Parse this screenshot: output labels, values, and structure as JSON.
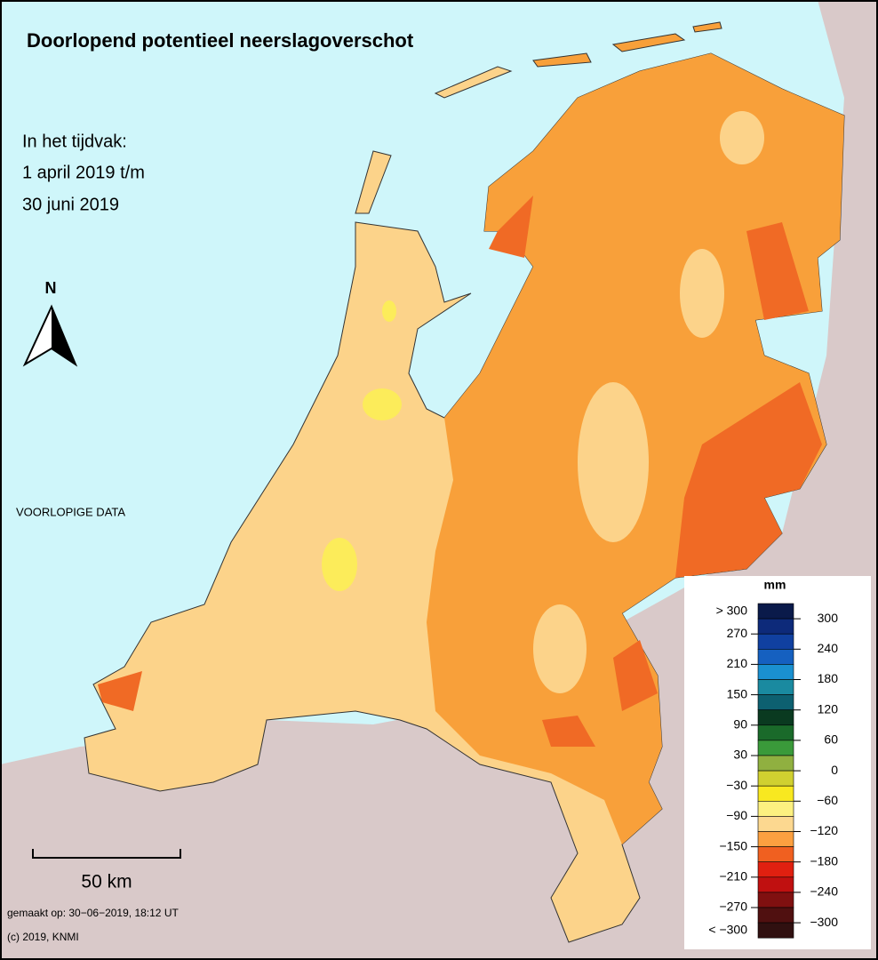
{
  "header": {
    "title": "Doorlopend potentieel neerslagoverschot",
    "period": [
      "In het tijdvak:",
      "1 april 2019 t/m",
      "30 juni 2019"
    ]
  },
  "north_label": "N",
  "status": "VOORLOPIGE DATA",
  "scale_bar": "50 km",
  "footer": [
    "gemaakt op: 30−06−2019, 18:12 UT",
    "(c) 2019, KNMI"
  ],
  "legend": {
    "unit": "mm",
    "left_labels": [
      "> 300",
      "270",
      "210",
      "150",
      "90",
      "30",
      "−30",
      "−90",
      "−150",
      "−210",
      "−270",
      "< −300"
    ],
    "right_labels": [
      "300",
      "240",
      "180",
      "120",
      "60",
      "0",
      "−60",
      "−120",
      "−180",
      "−240",
      "−300"
    ],
    "colors": [
      "#0a1a4a",
      "#0d2a7a",
      "#1040a0",
      "#1560c0",
      "#1a90d0",
      "#1a8aa0",
      "#0d6070",
      "#0a3a20",
      "#1a6a2a",
      "#3a9a3a",
      "#90b040",
      "#d0d030",
      "#f8e820",
      "#fcf080",
      "#fcd890",
      "#fca040",
      "#f06020",
      "#e02010",
      "#c01010",
      "#801010",
      "#501010",
      "#301010"
    ]
  }
}
